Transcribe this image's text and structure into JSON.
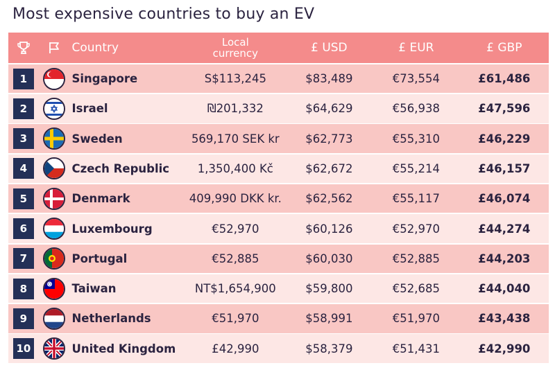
{
  "title": "Most expensive countries to buy an EV",
  "headers": {
    "country": "Country",
    "local_line1": "Local",
    "local_line2": "currency",
    "usd": "£ USD",
    "eur": "£ EUR",
    "gbp": "£ GBP"
  },
  "header_icons": [
    "trophy-icon",
    "flag-icon"
  ],
  "colors": {
    "header_bg": "#f48b8b",
    "row_odd": "#f9c7c4",
    "row_even": "#fde7e5",
    "rank_box": "#243057"
  },
  "chart_data": {
    "type": "table",
    "title": "Most expensive countries to buy an EV",
    "columns": [
      "Country",
      "Local currency",
      "£ USD",
      "£ EUR",
      "£ GBP"
    ],
    "rows": [
      {
        "rank": "1",
        "country": "Singapore",
        "flag": "singapore-flag-icon",
        "local": "S$113,245",
        "usd": "$83,489",
        "eur": "€73,554",
        "gbp": "£61,486"
      },
      {
        "rank": "2",
        "country": "Israel",
        "flag": "israel-flag-icon",
        "local": "₪201,332",
        "usd": "$64,629",
        "eur": "€56,938",
        "gbp": "£47,596"
      },
      {
        "rank": "3",
        "country": "Sweden",
        "flag": "sweden-flag-icon",
        "local": "569,170 SEK kr",
        "usd": "$62,773",
        "eur": "€55,310",
        "gbp": "£46,229"
      },
      {
        "rank": "4",
        "country": "Czech Republic",
        "flag": "czech-flag-icon",
        "local": "1,350,400 Kč",
        "usd": "$62,672",
        "eur": "€55,214",
        "gbp": "£46,157"
      },
      {
        "rank": "5",
        "country": "Denmark",
        "flag": "denmark-flag-icon",
        "local": "409,990 DKK kr.",
        "usd": "$62,562",
        "eur": "€55,117",
        "gbp": "£46,074"
      },
      {
        "rank": "6",
        "country": "Luxembourg",
        "flag": "luxembourg-flag-icon",
        "local": "€52,970",
        "usd": "$60,126",
        "eur": "€52,970",
        "gbp": "£44,274"
      },
      {
        "rank": "7",
        "country": "Portugal",
        "flag": "portugal-flag-icon",
        "local": "€52,885",
        "usd": "$60,030",
        "eur": "€52,885",
        "gbp": "£44,203"
      },
      {
        "rank": "8",
        "country": "Taiwan",
        "flag": "taiwan-flag-icon",
        "local": "NT$1,654,900",
        "usd": "$59,800",
        "eur": "€52,685",
        "gbp": "£44,040"
      },
      {
        "rank": "9",
        "country": "Netherlands",
        "flag": "netherlands-flag-icon",
        "local": "€51,970",
        "usd": "$58,991",
        "eur": "€51,970",
        "gbp": "£43,438"
      },
      {
        "rank": "10",
        "country": "United Kingdom",
        "flag": "uk-flag-icon",
        "local": "£42,990",
        "usd": "$58,379",
        "eur": "€51,431",
        "gbp": "£42,990"
      }
    ]
  }
}
